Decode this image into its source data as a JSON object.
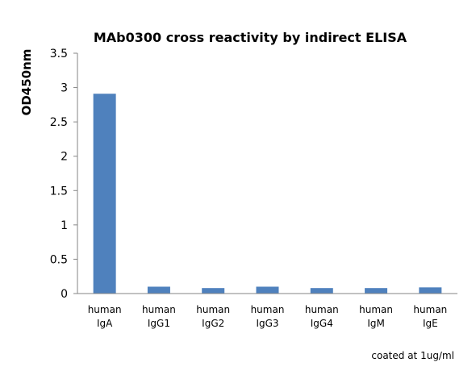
{
  "chart_data": {
    "type": "bar",
    "title": "MAb0300 cross reactivity by indirect ELISA",
    "xlabel": "",
    "ylabel": "OD450nm",
    "categories": [
      [
        "human",
        "IgA"
      ],
      [
        "human",
        "IgG1"
      ],
      [
        "human",
        "IgG2"
      ],
      [
        "human",
        "IgG3"
      ],
      [
        "human",
        "IgG4"
      ],
      [
        "human",
        "IgM"
      ],
      [
        "human",
        "IgE"
      ]
    ],
    "values": [
      2.91,
      0.1,
      0.08,
      0.1,
      0.08,
      0.08,
      0.09
    ],
    "ylim": [
      0,
      3.5
    ],
    "yticks": [
      "0",
      "0.5",
      "1",
      "1.5",
      "2",
      "2.5",
      "3",
      "3.5"
    ],
    "grid": false,
    "legend": "none",
    "bar_color": "#4f81bd",
    "axis_color": "#868686"
  },
  "note": "coated at 1ug/ml"
}
